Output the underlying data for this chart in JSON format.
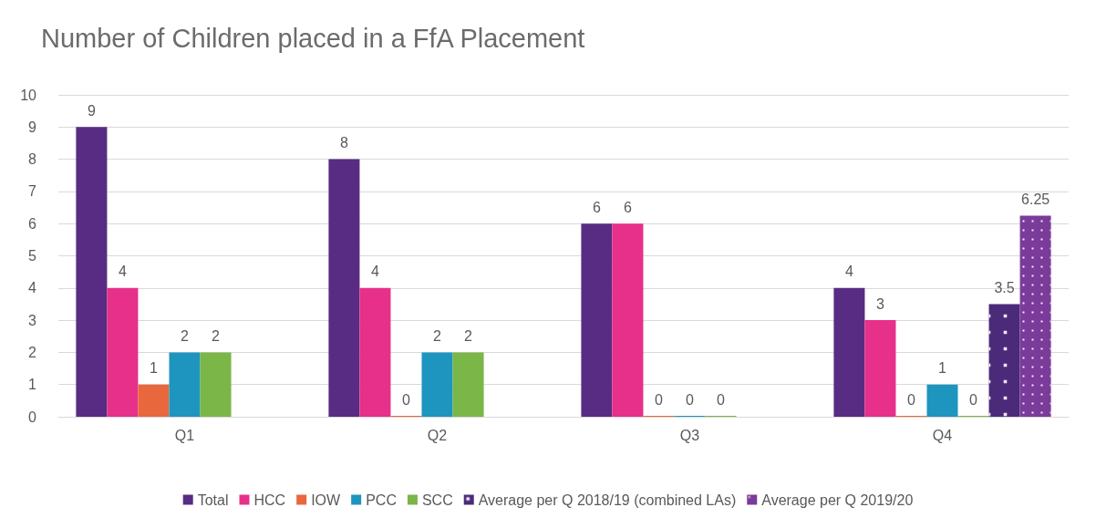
{
  "chart_data": {
    "type": "bar",
    "title": "Number of Children placed in a FfA Placement",
    "categories": [
      "Q1",
      "Q2",
      "Q3",
      "Q4"
    ],
    "series": [
      {
        "name": "Total",
        "color": "#582c83",
        "values": [
          9,
          8,
          6,
          4
        ]
      },
      {
        "name": "HCC",
        "color": "#e6308a",
        "values": [
          4,
          4,
          6,
          3
        ]
      },
      {
        "name": "IOW",
        "color": "#e8673c",
        "values": [
          1,
          0,
          0,
          0
        ]
      },
      {
        "name": "PCC",
        "color": "#1d95bf",
        "values": [
          2,
          2,
          0,
          1
        ]
      },
      {
        "name": "SCC",
        "color": "#7ab648",
        "values": [
          2,
          2,
          0,
          0
        ]
      },
      {
        "name": "Average per Q 2018/19 (combined LAs)",
        "color": "#4b2a7a",
        "values": [
          null,
          null,
          null,
          3.5
        ]
      },
      {
        "name": "Average per Q 2019/20",
        "color": "#7a3b9a",
        "values": [
          null,
          null,
          null,
          6.25
        ]
      }
    ],
    "ylim": [
      0,
      10
    ],
    "yticks": [
      0,
      1,
      2,
      3,
      4,
      5,
      6,
      7,
      8,
      9,
      10
    ],
    "grid": "y",
    "legend": "bottom",
    "data_labels": true
  }
}
